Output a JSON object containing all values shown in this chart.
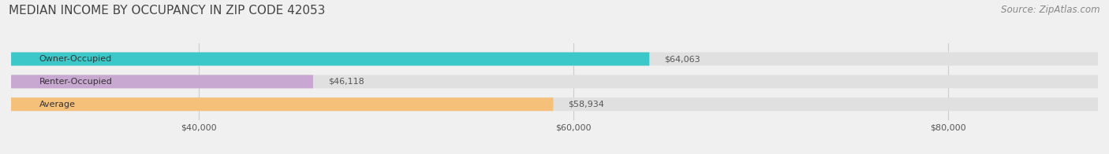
{
  "title": "MEDIAN INCOME BY OCCUPANCY IN ZIP CODE 42053",
  "source": "Source: ZipAtlas.com",
  "categories": [
    "Owner-Occupied",
    "Renter-Occupied",
    "Average"
  ],
  "values": [
    64063,
    46118,
    58934
  ],
  "bar_colors": [
    "#3cc8c8",
    "#c8a8d0",
    "#f5c07a"
  ],
  "label_texts": [
    "$64,063",
    "$46,118",
    "$58,934"
  ],
  "xlim_min": 30000,
  "xlim_max": 88000,
  "xticks": [
    40000,
    60000,
    80000
  ],
  "xtick_labels": [
    "$40,000",
    "$60,000",
    "$80,000"
  ],
  "bar_height": 0.55,
  "background_color": "#f0f0f0",
  "bar_background_color": "#e0e0e0",
  "title_fontsize": 11,
  "source_fontsize": 8.5,
  "label_fontsize": 8,
  "tick_fontsize": 8,
  "cat_fontsize": 8
}
